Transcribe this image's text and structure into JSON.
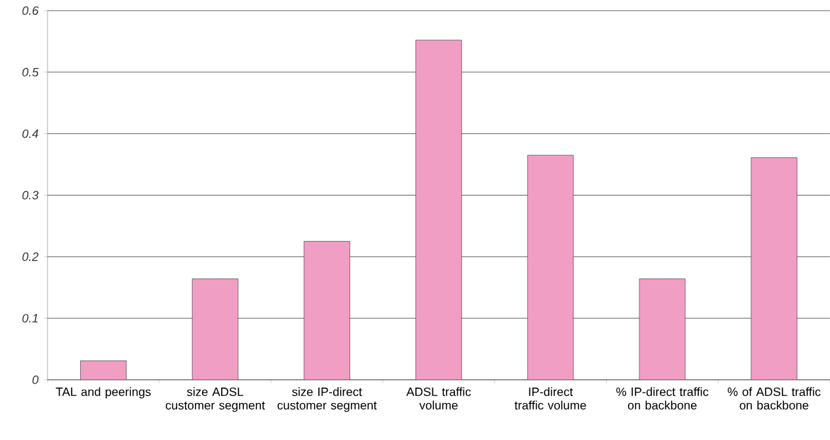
{
  "chart_data": {
    "type": "bar",
    "categories": [
      "TAL and peerings",
      "size ADSL customer segment",
      "size IP-direct customer segment",
      "ADSL traffic volume",
      "IP-direct traffic volume",
      "% IP-direct traffic on backbone",
      "% of ADSL traffic on backbone"
    ],
    "values": [
      0.031,
      0.164,
      0.225,
      0.552,
      0.365,
      0.164,
      0.361
    ],
    "color": "#f19ec4",
    "ylim": [
      0,
      0.6
    ],
    "yticks": [
      0,
      0.1,
      0.2,
      0.3,
      0.4,
      0.5,
      0.6
    ],
    "grid": "y"
  }
}
